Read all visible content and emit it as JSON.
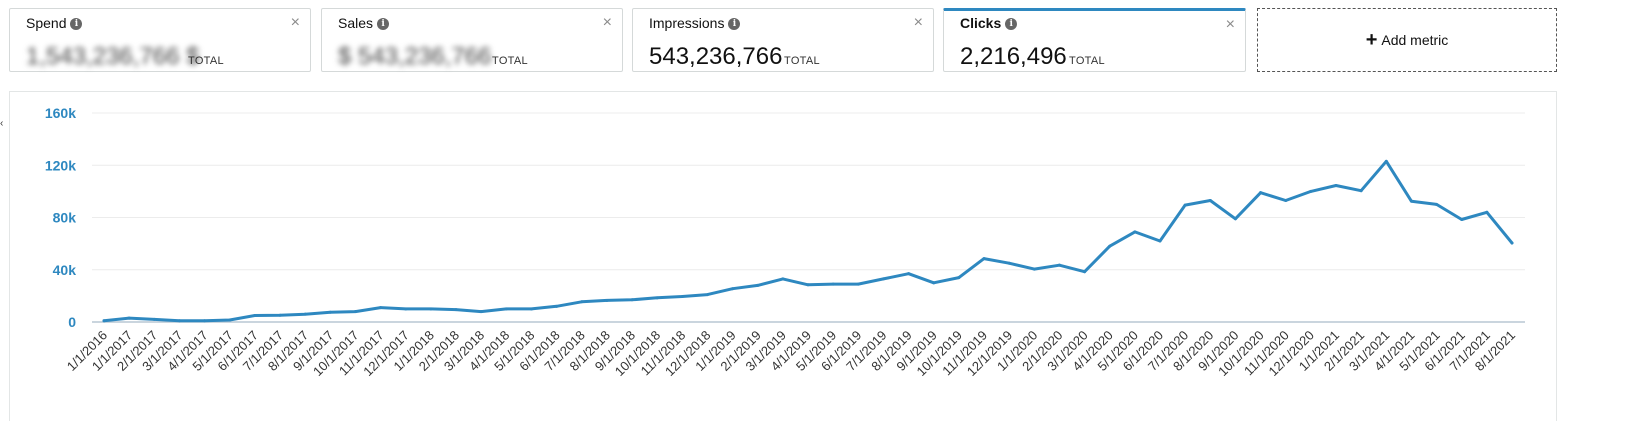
{
  "metrics": [
    {
      "name": "Spend",
      "value": "1,543,236,766 $",
      "total": "TOTAL",
      "blurred": true
    },
    {
      "name": "Sales",
      "value": "$ 543,236,766",
      "total": "TOTAL",
      "blurred": true
    },
    {
      "name": "Impressions",
      "value": "543,236,766",
      "total": "TOTAL",
      "blurred": false
    },
    {
      "name": "Clicks",
      "value": "2,216,496",
      "total": "TOTAL",
      "blurred": false
    }
  ],
  "add_metric_label": "Add metric",
  "colors": {
    "line": "#2e88c0",
    "axis_label": "#2e88c0",
    "selected_border": "#2e88c0"
  },
  "chart_data": {
    "type": "line",
    "title": "",
    "xlabel": "",
    "ylabel": "",
    "ylim": [
      0,
      160000
    ],
    "yticks": [
      0,
      40000,
      80000,
      120000,
      160000
    ],
    "ytick_labels": [
      "0",
      "40k",
      "80k",
      "120k",
      "160k"
    ],
    "grid": true,
    "categories": [
      "1/1/2016",
      "1/1/2017",
      "2/1/2017",
      "3/1/2017",
      "4/1/2017",
      "5/1/2017",
      "6/1/2017",
      "7/1/2017",
      "8/1/2017",
      "9/1/2017",
      "10/1/2017",
      "11/1/2017",
      "12/1/2017",
      "1/1/2018",
      "2/1/2018",
      "3/1/2018",
      "4/1/2018",
      "5/1/2018",
      "6/1/2018",
      "7/1/2018",
      "8/1/2018",
      "9/1/2018",
      "10/1/2018",
      "11/1/2018",
      "12/1/2018",
      "1/1/2019",
      "2/1/2019",
      "3/1/2019",
      "4/1/2019",
      "5/1/2019",
      "6/1/2019",
      "7/1/2019",
      "8/1/2019",
      "9/1/2019",
      "10/1/2019",
      "11/1/2019",
      "12/1/2019",
      "1/1/2020",
      "2/1/2020",
      "3/1/2020",
      "4/1/2020",
      "5/1/2020",
      "6/1/2020",
      "7/1/2020",
      "8/1/2020",
      "9/1/2020",
      "10/1/2020",
      "11/1/2020",
      "12/1/2020",
      "1/1/2021",
      "2/1/2021",
      "3/1/2021",
      "4/1/2021",
      "5/1/2021",
      "6/1/2021",
      "7/1/2021",
      "8/1/2021"
    ],
    "series": [
      {
        "name": "Clicks",
        "values": [
          1000,
          3000,
          2000,
          1000,
          1000,
          1500,
          5000,
          5200,
          6000,
          7500,
          8000,
          11000,
          10000,
          10000,
          9500,
          8000,
          10000,
          10000,
          12000,
          15500,
          16500,
          17000,
          18500,
          19500,
          21000,
          25500,
          28000,
          33000,
          28500,
          29000,
          29000,
          33000,
          37000,
          30000,
          34000,
          48500,
          45000,
          40500,
          43500,
          38500,
          58000,
          69000,
          62000,
          89500,
          93000,
          79000,
          99000,
          93000,
          100000,
          104500,
          100500,
          123000,
          92500,
          90000,
          78500,
          84000,
          60500
        ]
      }
    ]
  }
}
